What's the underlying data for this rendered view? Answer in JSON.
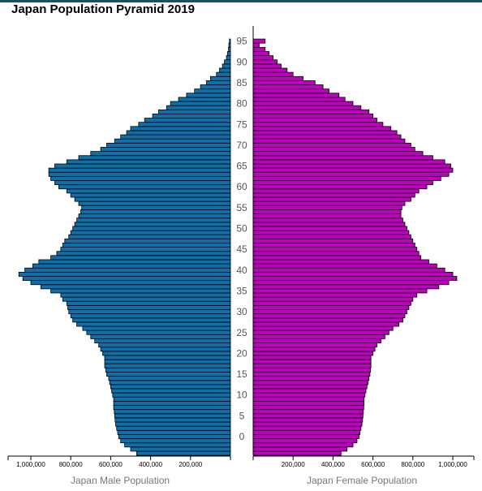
{
  "title": "Japan Population Pyramid 2019",
  "colors": {
    "male": "#0f6fa8",
    "female": "#c000c0",
    "outline": "#000000"
  },
  "chart_data": {
    "type": "bar",
    "orientation": "horizontal",
    "title": "Japan Population Pyramid 2019",
    "xlabel_male": "Japan Male Population",
    "xlabel_female": "Japan Female Population",
    "xlim": [
      0,
      1100000
    ],
    "male_ticks": [
      1000000,
      800000,
      600000,
      400000,
      200000
    ],
    "male_tick_labels": [
      "1,000,000",
      "800,000",
      "600,000",
      "400,000",
      "200,000"
    ],
    "female_ticks": [
      200000,
      400000,
      600000,
      800000,
      1000000
    ],
    "female_tick_labels": [
      "200,000",
      "400,000",
      "600,000",
      "800,000",
      "1,000,000"
    ],
    "age_ticks": [
      0,
      5,
      10,
      15,
      20,
      25,
      30,
      35,
      40,
      45,
      50,
      55,
      60,
      65,
      70,
      75,
      80,
      85,
      90,
      95
    ],
    "age_tick_labels": [
      "0",
      "5",
      "10",
      "15",
      "20",
      "25",
      "30",
      "35",
      "40",
      "45",
      "50",
      "55",
      "60",
      "65",
      "70",
      "75",
      "80",
      "85",
      "90",
      "95"
    ],
    "ages": [
      -4,
      -3,
      -2,
      -1,
      0,
      1,
      2,
      3,
      4,
      5,
      6,
      7,
      8,
      9,
      10,
      11,
      12,
      13,
      14,
      15,
      16,
      17,
      18,
      19,
      20,
      21,
      22,
      23,
      24,
      25,
      26,
      27,
      28,
      29,
      30,
      31,
      32,
      33,
      34,
      35,
      36,
      37,
      38,
      39,
      40,
      41,
      42,
      43,
      44,
      45,
      46,
      47,
      48,
      49,
      50,
      51,
      52,
      53,
      54,
      55,
      56,
      57,
      58,
      59,
      60,
      61,
      62,
      63,
      64,
      65,
      66,
      67,
      68,
      69,
      70,
      71,
      72,
      73,
      74,
      75,
      76,
      77,
      78,
      79,
      80,
      81,
      82,
      83,
      84,
      85,
      86,
      87,
      88,
      89,
      90,
      91,
      92,
      93,
      94,
      95,
      96,
      97,
      98,
      99
    ],
    "series": [
      {
        "name": "Japan Male Population",
        "values": [
          470000,
          500000,
          530000,
          550000,
          560000,
          565000,
          570000,
          575000,
          578000,
          580000,
          582000,
          585000,
          585000,
          585000,
          590000,
          595000,
          600000,
          605000,
          610000,
          620000,
          625000,
          630000,
          630000,
          630000,
          640000,
          650000,
          660000,
          680000,
          700000,
          720000,
          740000,
          770000,
          790000,
          800000,
          810000,
          815000,
          820000,
          840000,
          850000,
          900000,
          950000,
          1000000,
          1040000,
          1060000,
          1030000,
          990000,
          960000,
          900000,
          870000,
          850000,
          840000,
          830000,
          810000,
          800000,
          790000,
          780000,
          770000,
          760000,
          750000,
          745000,
          760000,
          780000,
          800000,
          820000,
          860000,
          880000,
          900000,
          910000,
          910000,
          880000,
          820000,
          760000,
          700000,
          650000,
          620000,
          580000,
          550000,
          520000,
          500000,
          460000,
          430000,
          390000,
          360000,
          320000,
          300000,
          260000,
          220000,
          180000,
          150000,
          120000,
          100000,
          70000,
          55000,
          40000,
          30000,
          20000,
          15000,
          10000,
          8000,
          5000
        ]
      },
      {
        "name": "Japan Female Population",
        "values": [
          440000,
          470000,
          500000,
          520000,
          530000,
          535000,
          540000,
          545000,
          548000,
          550000,
          552000,
          554000,
          555000,
          555000,
          560000,
          565000,
          570000,
          575000,
          580000,
          585000,
          588000,
          590000,
          590000,
          590000,
          600000,
          610000,
          620000,
          640000,
          660000,
          680000,
          700000,
          730000,
          750000,
          760000,
          770000,
          780000,
          790000,
          800000,
          820000,
          870000,
          930000,
          980000,
          1020000,
          1000000,
          960000,
          920000,
          880000,
          840000,
          830000,
          820000,
          810000,
          800000,
          790000,
          780000,
          770000,
          760000,
          750000,
          740000,
          740000,
          745000,
          760000,
          790000,
          810000,
          830000,
          870000,
          900000,
          940000,
          980000,
          1000000,
          990000,
          960000,
          900000,
          850000,
          810000,
          790000,
          760000,
          740000,
          720000,
          690000,
          650000,
          620000,
          600000,
          580000,
          540000,
          500000,
          460000,
          430000,
          380000,
          350000,
          310000,
          250000,
          200000,
          170000,
          140000,
          120000,
          100000,
          80000,
          60000,
          30000,
          60000
        ]
      }
    ],
    "grid": false,
    "legend": "none"
  }
}
